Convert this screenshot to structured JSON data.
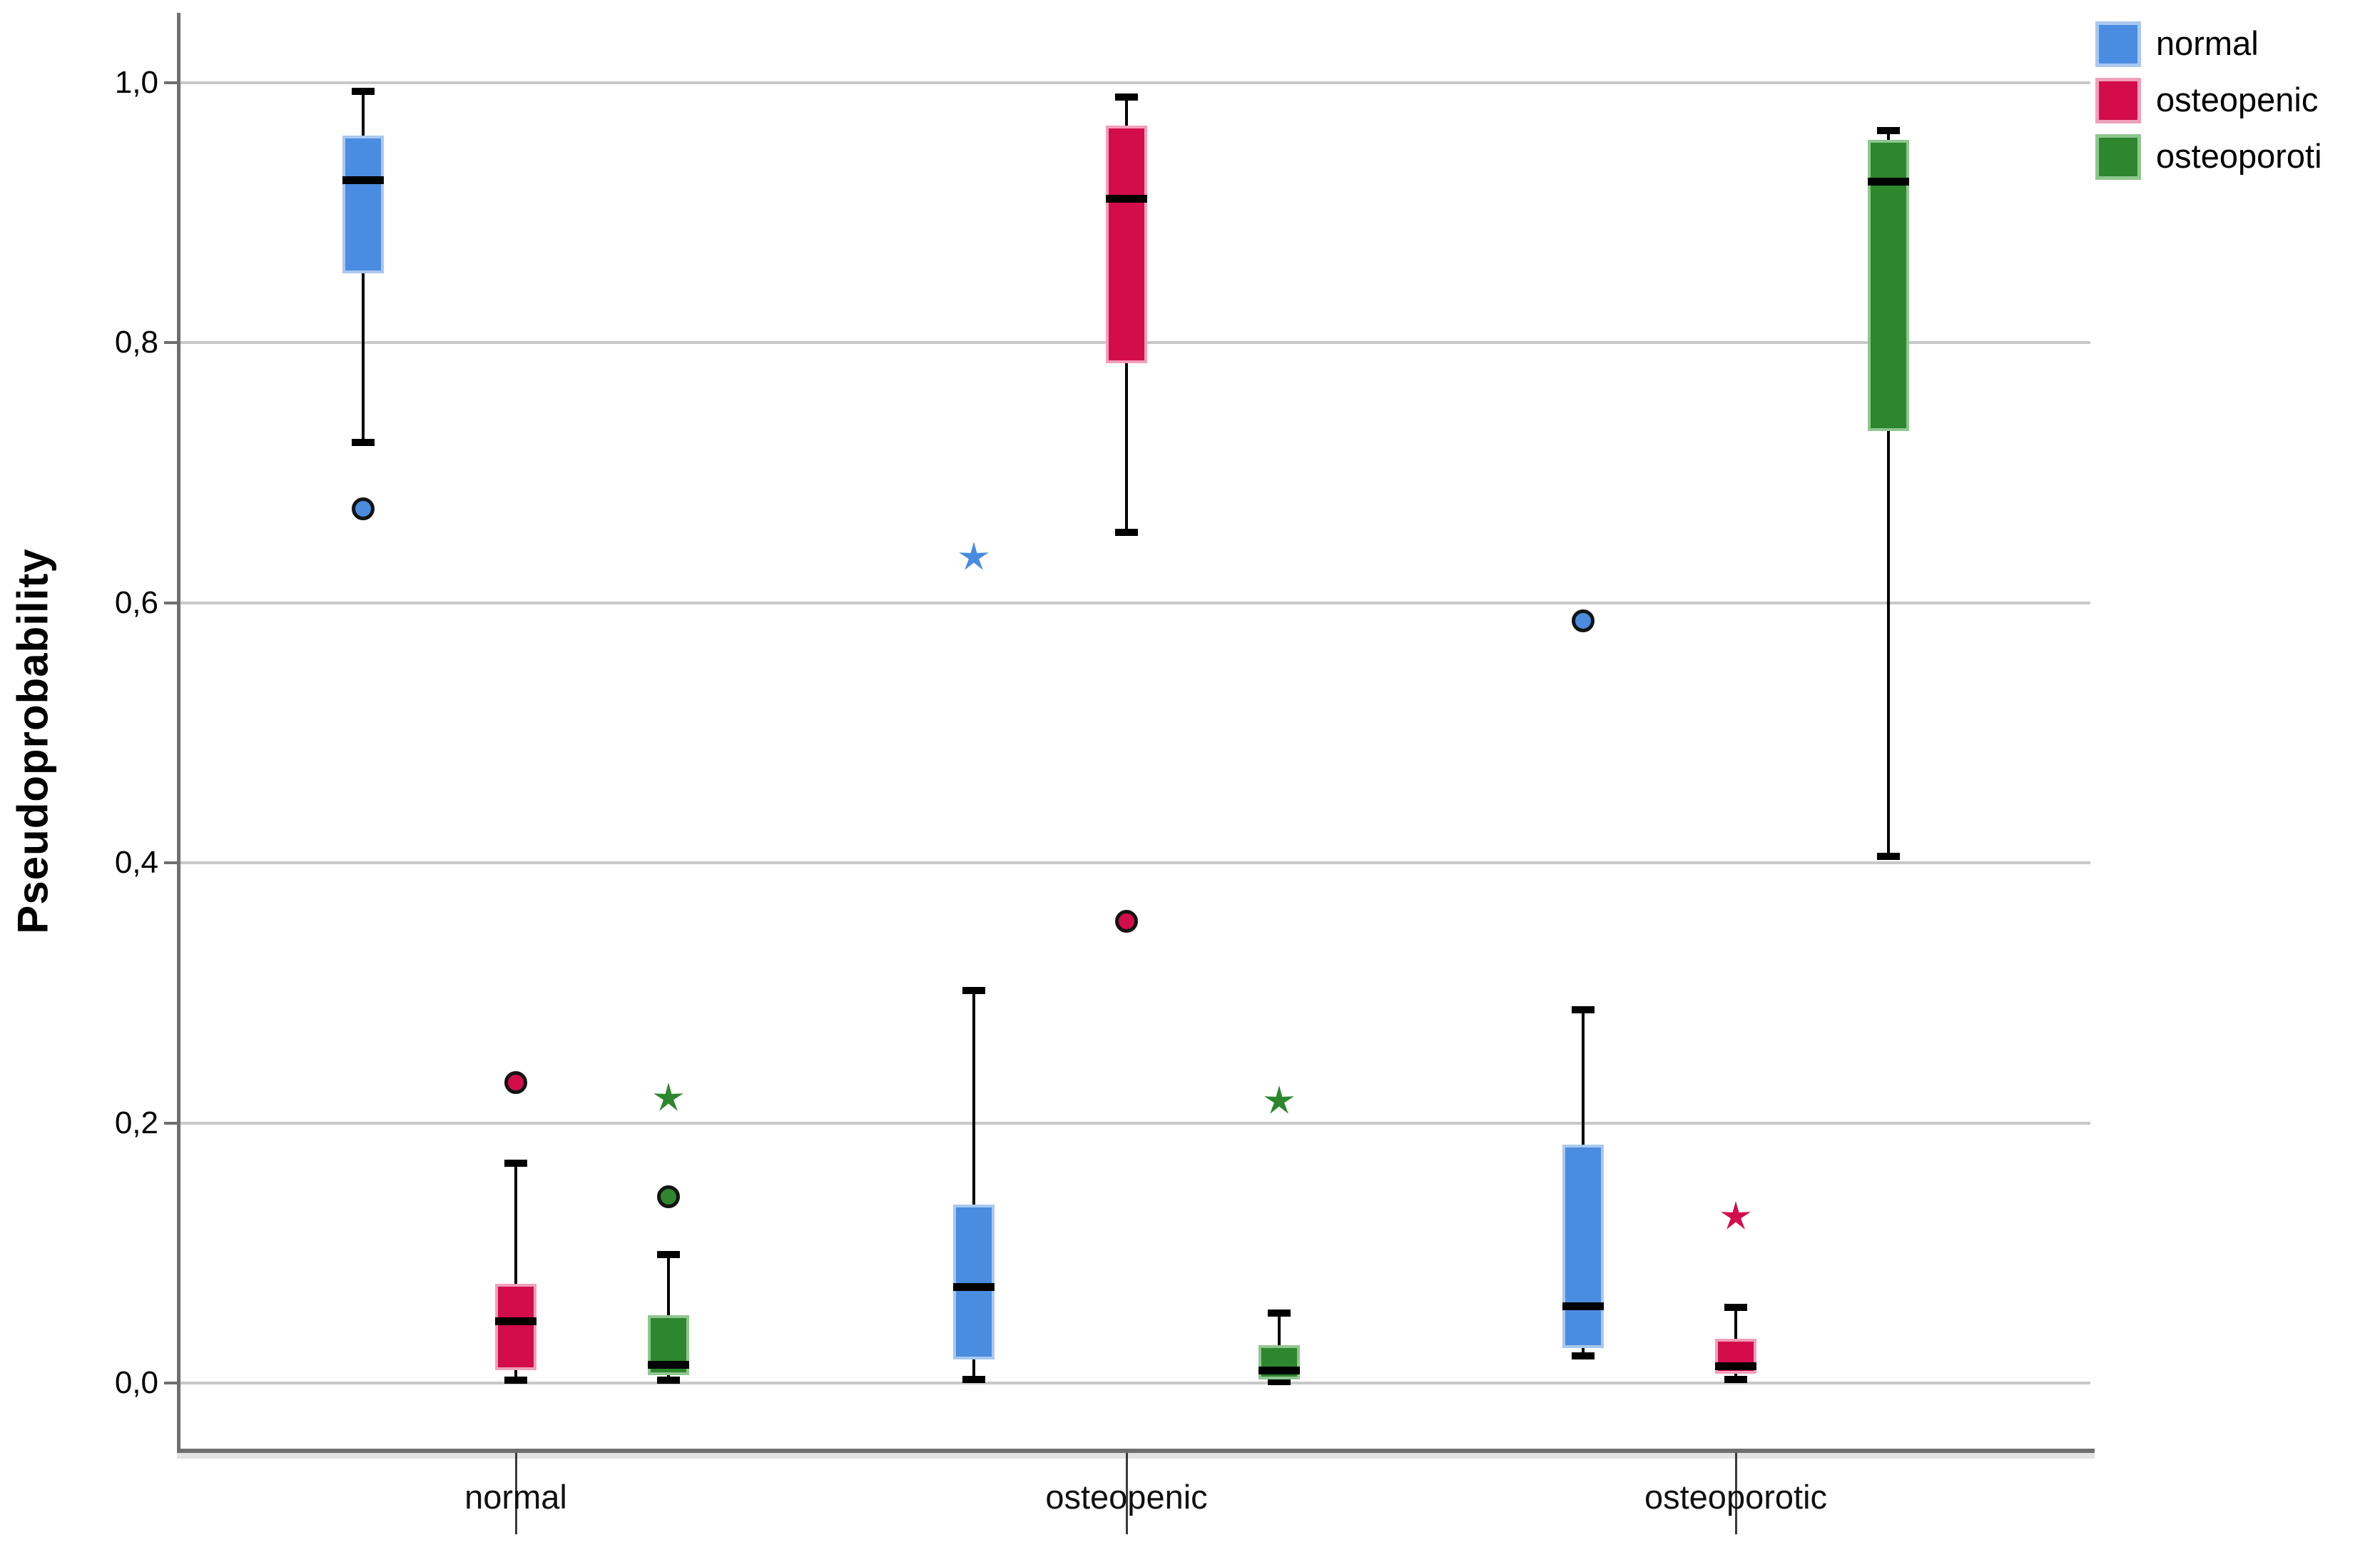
{
  "chart_data": {
    "type": "grouped_boxplot",
    "title": "",
    "xlabel": "",
    "ylabel": "Pseudoprobability",
    "categories": [
      "normal",
      "osteopenic",
      "osteoporotic"
    ],
    "y_ticks": [
      {
        "label": "1,0",
        "value": 1.0
      },
      {
        "label": "0,8",
        "value": 0.8
      },
      {
        "label": "0,6",
        "value": 0.6
      },
      {
        "label": "0,4",
        "value": 0.4
      },
      {
        "label": "0,2",
        "value": 0.2
      },
      {
        "label": "0,0",
        "value": 0.0
      }
    ],
    "ylim": [
      -0.054,
      1.053
    ],
    "grid": "horizontal",
    "legend_position": "top-right",
    "decimal_separator": ",",
    "series": [
      {
        "name": "normal",
        "color": "#4a8ce0",
        "edge_color": "#a9c8f0",
        "boxes": [
          {
            "category": "normal",
            "whisker_low": 0.723,
            "q1": 0.853,
            "median": 0.925,
            "q3": 0.959,
            "whisker_high": 0.993,
            "outliers": [
              0.672
            ],
            "extremes": []
          },
          {
            "category": "osteopenic",
            "whisker_low": 0.003,
            "q1": 0.018,
            "median": 0.074,
            "q3": 0.137,
            "whisker_high": 0.302,
            "outliers": [],
            "extremes": [
              0.635
            ]
          },
          {
            "category": "osteoporotic",
            "whisker_low": 0.021,
            "q1": 0.027,
            "median": 0.059,
            "q3": 0.183,
            "whisker_high": 0.287,
            "outliers": [
              0.586
            ],
            "extremes": []
          }
        ]
      },
      {
        "name": "osteopenic",
        "color": "#d30d4c",
        "edge_color": "#f0a0bb",
        "boxes": [
          {
            "category": "normal",
            "whisker_low": 0.002,
            "q1": 0.01,
            "median": 0.048,
            "q3": 0.076,
            "whisker_high": 0.169,
            "outliers": [
              0.231
            ],
            "extremes": []
          },
          {
            "category": "osteopenic",
            "whisker_low": 0.654,
            "q1": 0.784,
            "median": 0.911,
            "q3": 0.967,
            "whisker_high": 0.989,
            "outliers": [
              0.355
            ],
            "extremes": []
          },
          {
            "category": "osteoporotic",
            "whisker_low": 0.003,
            "q1": 0.007,
            "median": 0.013,
            "q3": 0.034,
            "whisker_high": 0.058,
            "outliers": [],
            "extremes": [
              0.128
            ]
          }
        ]
      },
      {
        "name": "osteoporoti",
        "color": "#2e862e",
        "edge_color": "#8fc78f",
        "boxes": [
          {
            "category": "normal",
            "whisker_low": 0.002,
            "q1": 0.006,
            "median": 0.014,
            "q3": 0.052,
            "whisker_high": 0.099,
            "outliers": [
              0.143
            ],
            "extremes": [
              0.219
            ]
          },
          {
            "category": "osteopenic",
            "whisker_low": 0.001,
            "q1": 0.003,
            "median": 0.01,
            "q3": 0.029,
            "whisker_high": 0.054,
            "outliers": [],
            "extremes": [
              0.217
            ]
          },
          {
            "category": "osteoporotic",
            "whisker_low": 0.405,
            "q1": 0.732,
            "median": 0.924,
            "q3": 0.956,
            "whisker_high": 0.963,
            "outliers": [],
            "extremes": []
          }
        ]
      }
    ]
  }
}
